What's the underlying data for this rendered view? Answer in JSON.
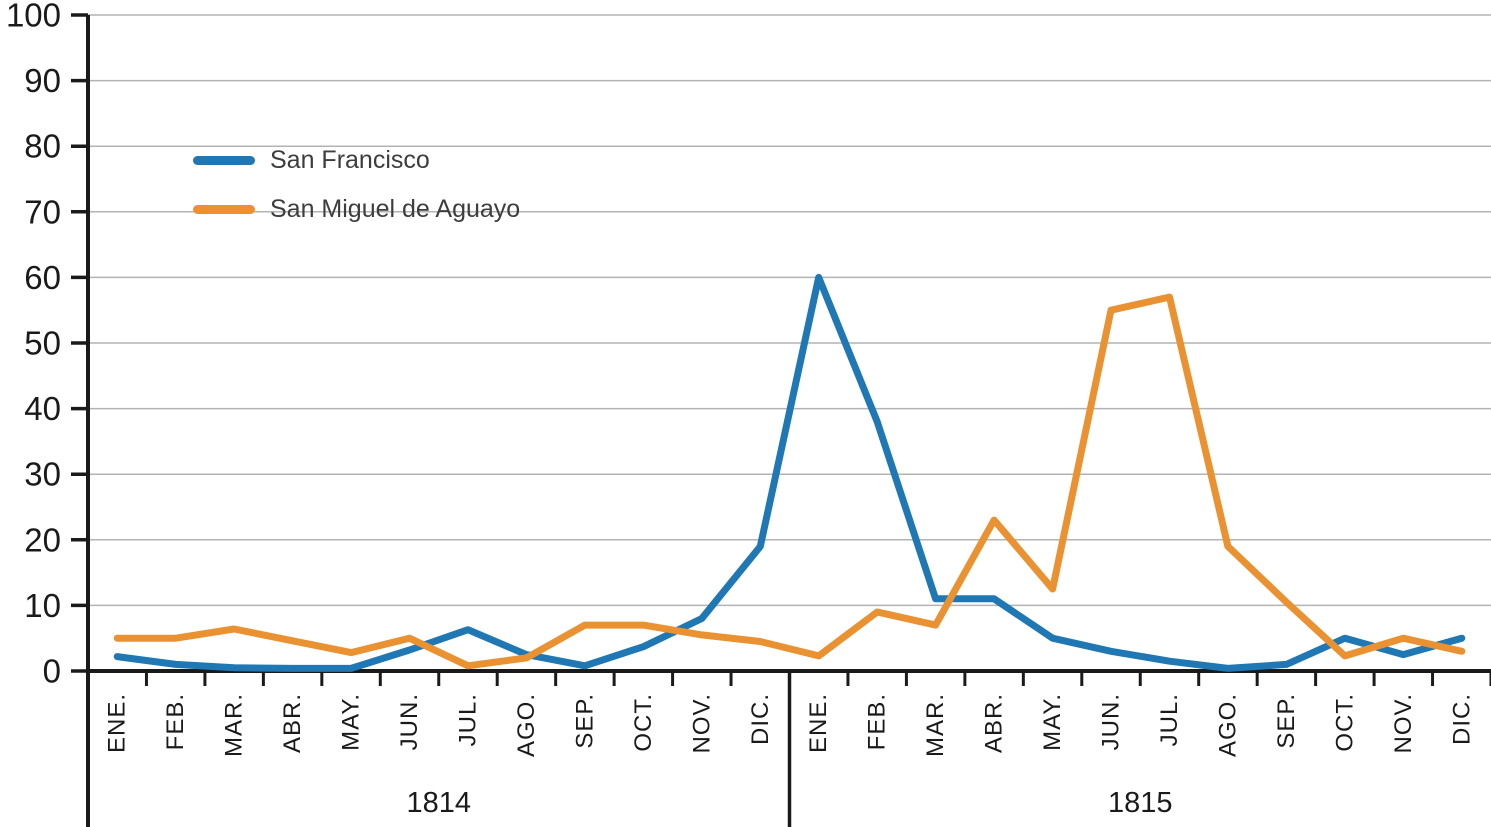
{
  "chart_data": {
    "type": "line",
    "title": "",
    "months": [
      "ENE.",
      "FEB.",
      "MAR.",
      "ABR.",
      "MAY.",
      "JUN.",
      "JUL.",
      "AGO.",
      "SEP.",
      "OCT.",
      "NOV.",
      "DIC."
    ],
    "years": [
      "1814",
      "1815"
    ],
    "y_axis": {
      "min": 0,
      "max": 100,
      "step": 10
    },
    "grid": "horizontal",
    "legend_position": "top-left",
    "series": [
      {
        "name": "San Francisco",
        "slug": "san-francisco",
        "color": "#1F77B4",
        "values": [
          2.2,
          1,
          0.5,
          0.4,
          0.4,
          3.2,
          6.3,
          2.5,
          0.8,
          3.7,
          8,
          19,
          60,
          38,
          11,
          11,
          5,
          3,
          1.5,
          0.4,
          1,
          5,
          2.5,
          5
        ]
      },
      {
        "name": "San Miguel de Aguayo",
        "slug": "san-miguel-de-aguayo",
        "color": "#EA9132",
        "values": [
          5,
          5,
          6.4,
          4.6,
          2.8,
          5,
          0.8,
          2,
          7,
          7,
          5.5,
          4.5,
          2.3,
          9,
          7,
          23,
          12.5,
          55,
          57,
          19,
          10.5,
          2.3,
          5,
          3
        ]
      }
    ],
    "colors": {
      "axis": "#1a1a1a",
      "gridline": "#b3b3b3",
      "tick_label": "#1a1a1a",
      "legend_text": "#3d3d3d"
    }
  }
}
